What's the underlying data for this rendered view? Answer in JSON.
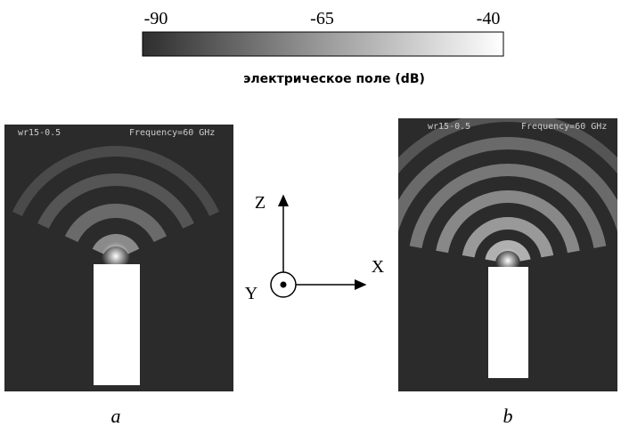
{
  "colorbar": {
    "ticks": [
      -90,
      -65,
      -40
    ],
    "label": "электрическое поле (dB)"
  },
  "panels": [
    {
      "model": "wr15-0.5",
      "frequency": "Frequency=60 GHz",
      "caption": "a"
    },
    {
      "model": "wr15-0.5",
      "frequency": "Frequency=60 GHz",
      "caption": "b"
    }
  ],
  "axes": {
    "z": "Z",
    "x": "X",
    "y": "Y"
  }
}
